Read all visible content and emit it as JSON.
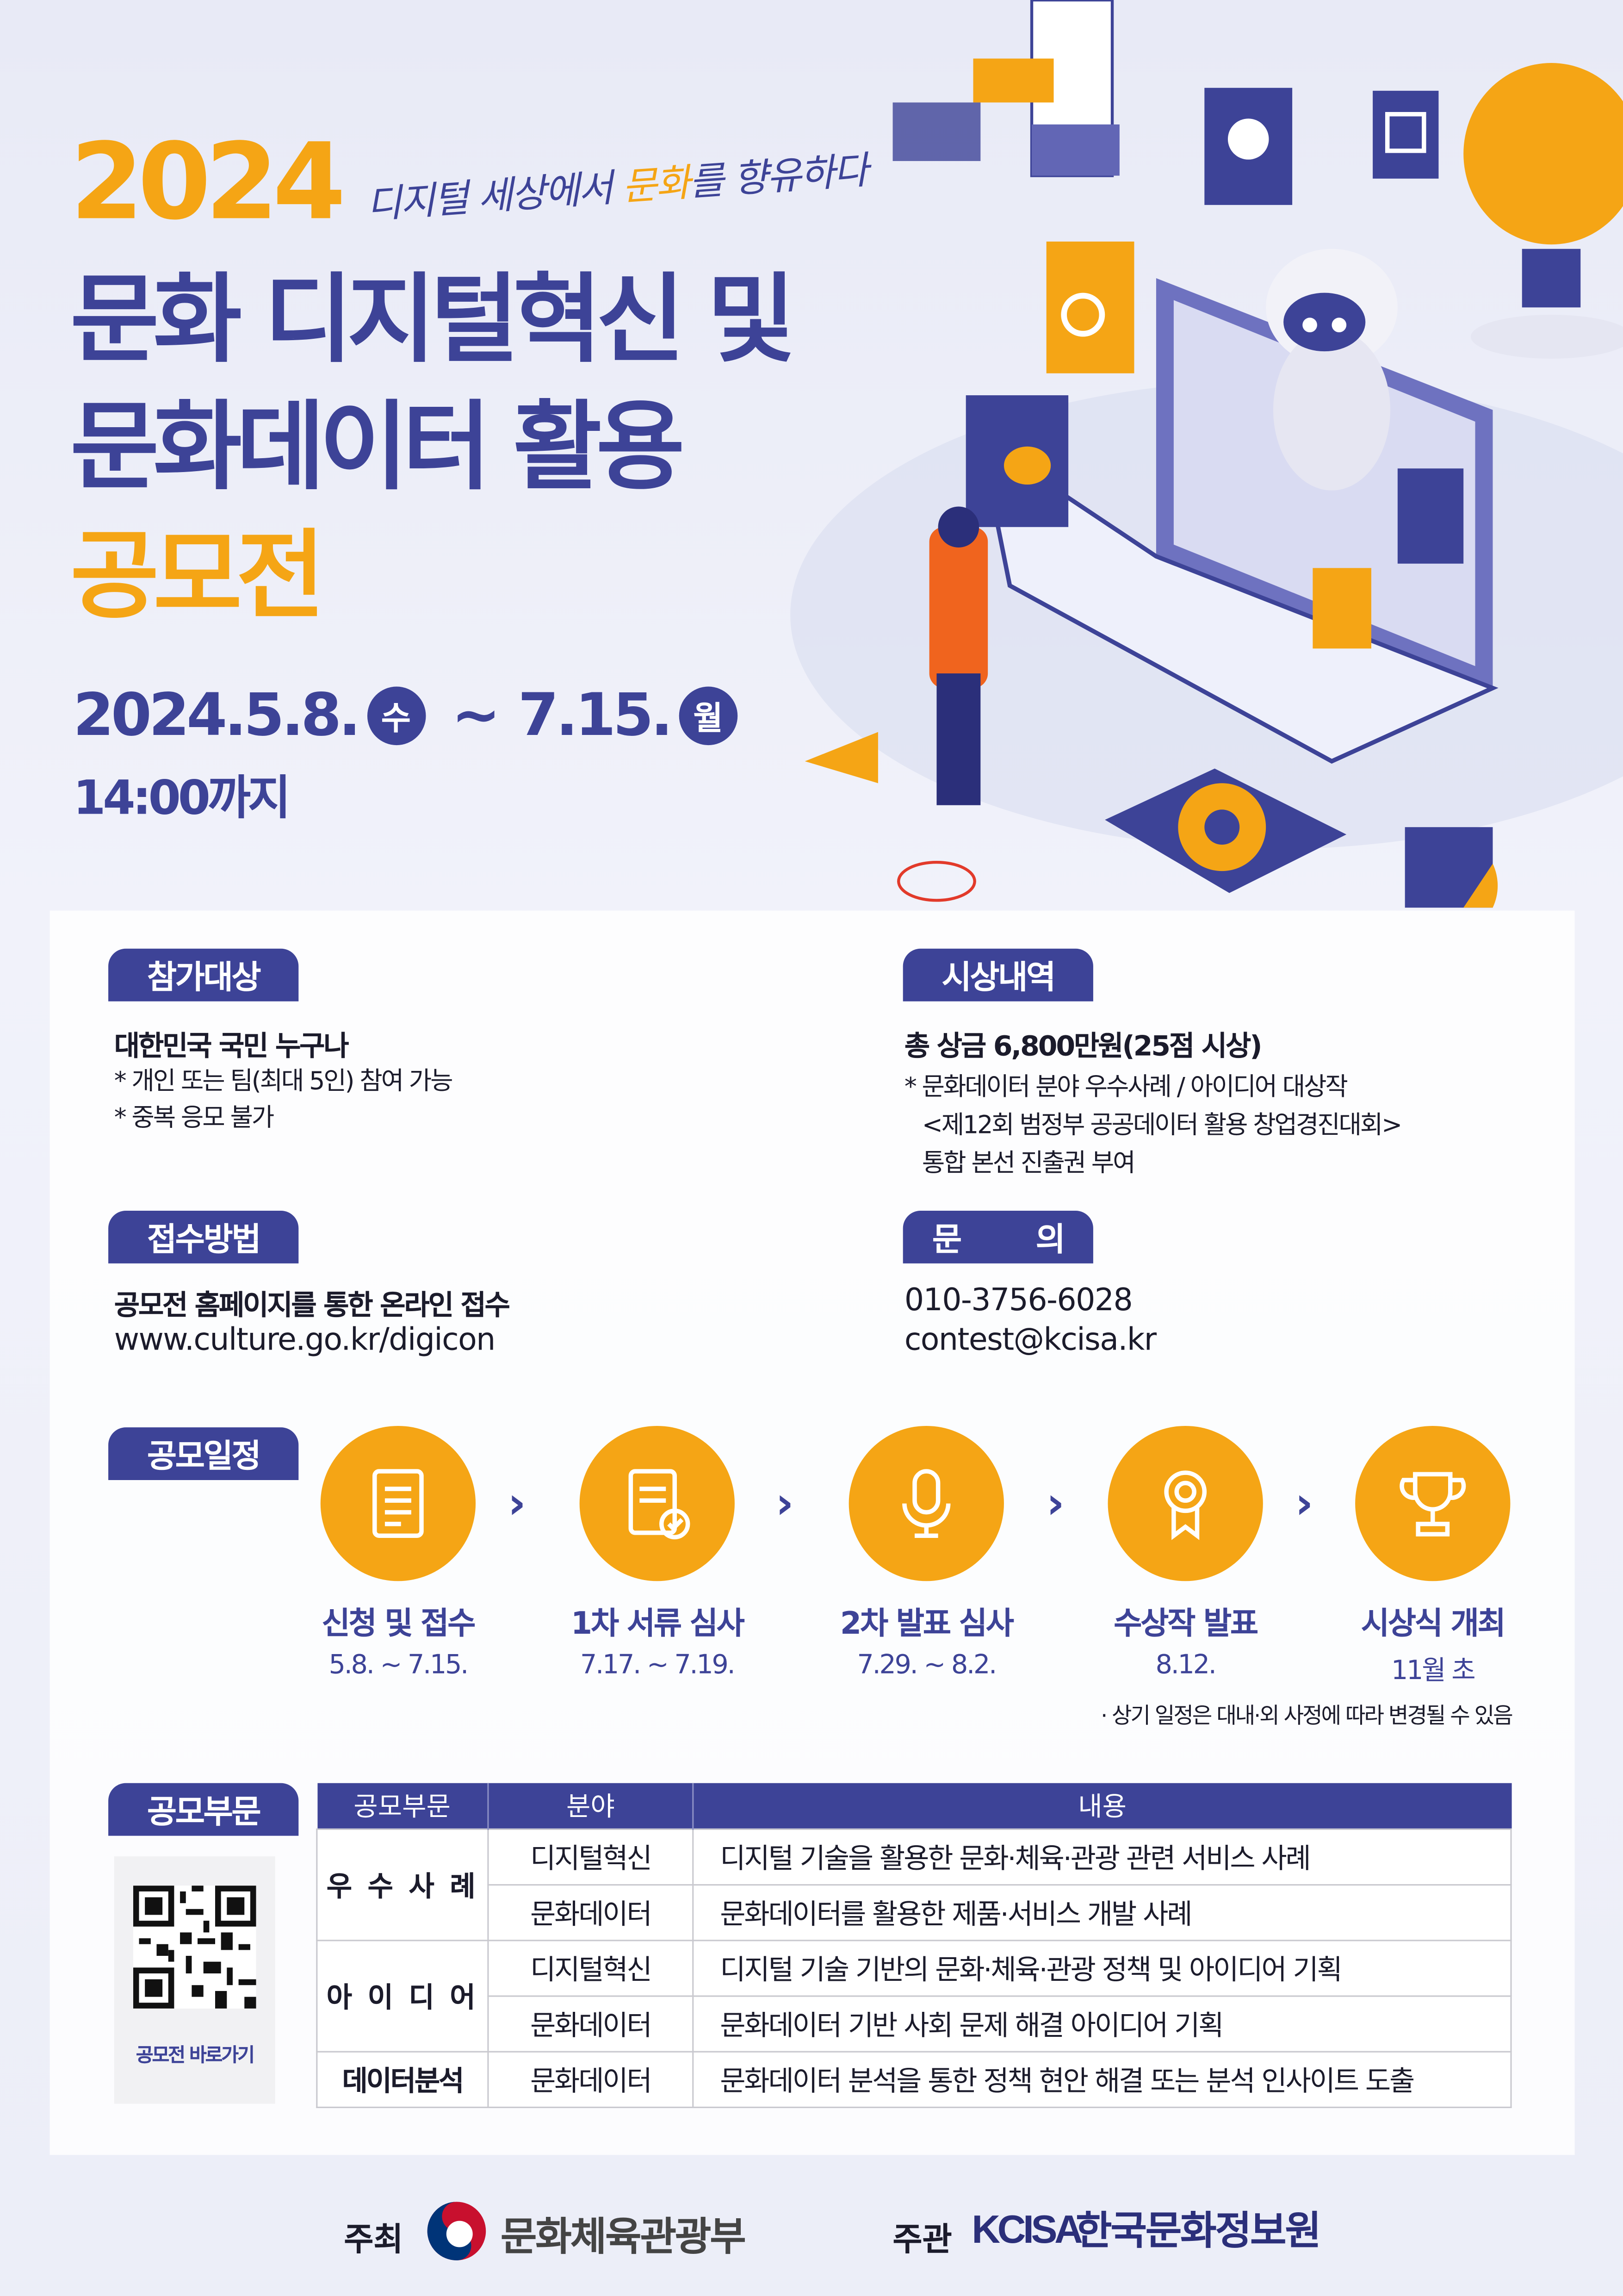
{
  "header": {
    "year": "2024",
    "slogan_pre": "디지털 세상에서 ",
    "slogan_highlight": "문화",
    "slogan_post": "를 향유하다",
    "title_line1": "문화 디지털혁신 및",
    "title_line2": "문화데이터 활용",
    "title_line3": "공모전",
    "date_start": "2024.5.8.",
    "date_start_day": "수",
    "date_sep": " ~ ",
    "date_end": "7.15.",
    "date_end_day": "월",
    "deadline_time": "14:00까지"
  },
  "eligibility": {
    "tag": "참가대상",
    "headline": "대한민국 국민 누구나",
    "notes": [
      "* 개인 또는 팀(최대 5인) 참여 가능",
      "* 중복 응모 불가"
    ]
  },
  "awards": {
    "tag": "시상내역",
    "headline": "총 상금 6,800만원(25점 시상)",
    "notes": [
      "* 문화데이터 분야 우수사례 / 아이디어 대상작",
      "<제12회 범정부 공공데이터 활용 창업경진대회>",
      "통합 본선 진출권 부여"
    ]
  },
  "submission": {
    "tag": "접수방법",
    "headline": "공모전 홈페이지를 통한 온라인 접수",
    "url": "www.culture.go.kr/digicon"
  },
  "inquiry": {
    "tag_left": "문",
    "tag_right": "의",
    "phone": "010-3756-6028",
    "email": "contest@kcisa.kr"
  },
  "schedule": {
    "tag": "공모일정",
    "steps": [
      {
        "label": "신청 및 접수",
        "date": "5.8. ~ 7.15.",
        "icon": "document-icon"
      },
      {
        "label": "1차 서류 심사",
        "date": "7.17. ~ 7.19.",
        "icon": "checklist-icon"
      },
      {
        "label": "2차 발표 심사",
        "date": "7.29. ~ 8.2.",
        "icon": "microphone-icon"
      },
      {
        "label": "수상작 발표",
        "date": "8.12.",
        "icon": "award-ribbon-icon"
      },
      {
        "label": "시상식 개최",
        "date": "11월 초",
        "icon": "trophy-icon"
      }
    ],
    "note": "· 상기 일정은 대내·외 사정에 따라 변경될 수 있음"
  },
  "categories": {
    "tag": "공모부문",
    "qr_label": "공모전 바로가기",
    "headers": [
      "공모부문",
      "분야",
      "내용"
    ],
    "rows": [
      {
        "category": "우 수 사 례",
        "field": "디지털혁신",
        "desc": "디지털 기술을 활용한 문화·체육·관광 관련 서비스 사례"
      },
      {
        "category": "우 수 사 례",
        "field": "문화데이터",
        "desc": "문화데이터를 활용한 제품·서비스 개발 사례"
      },
      {
        "category": "아 이 디 어",
        "field": "디지털혁신",
        "desc": "디지털 기술 기반의 문화·체육·관광 정책 및 아이디어 기획"
      },
      {
        "category": "아 이 디 어",
        "field": "문화데이터",
        "desc": "문화데이터 기반 사회 문제 해결 아이디어 기획"
      },
      {
        "category": "데이터분석",
        "field": "문화데이터",
        "desc": "문화데이터 분석을 통한 정책 현안 해결 또는 분석 인사이트 도출"
      }
    ]
  },
  "footer": {
    "host_label": "주최",
    "host_org": "문화체육관광부",
    "organizer_label": "주관",
    "organizer_logo": "KCISA",
    "organizer_org": "한국문화정보원"
  },
  "colors": {
    "navy": "#3d4397",
    "orange": "#f5a515",
    "background": "#eceef8"
  }
}
